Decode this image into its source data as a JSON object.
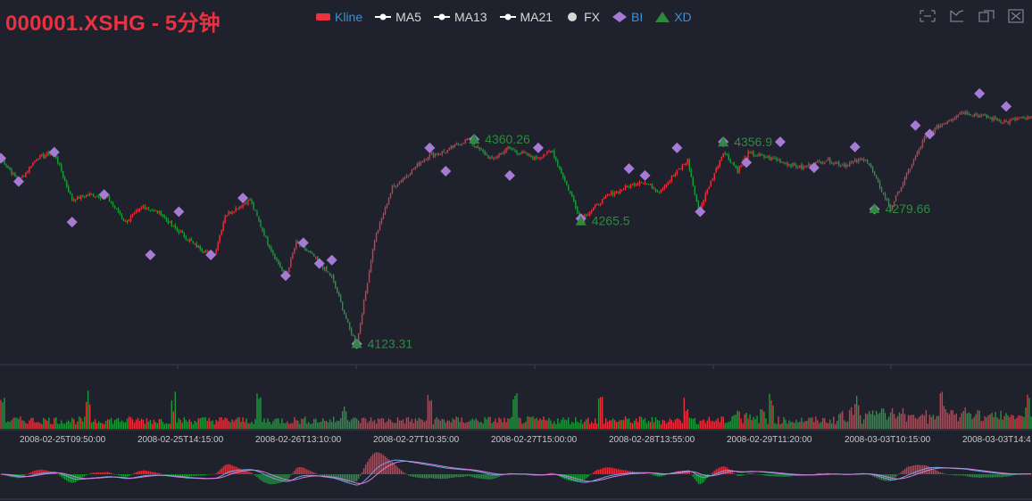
{
  "title": "000001.XSHG - 5分钟",
  "legend": [
    {
      "label": "Kline",
      "color": "#e9313f",
      "shape": "rect",
      "active": true
    },
    {
      "label": "MA5",
      "color": "#ffffff",
      "shape": "line-dot"
    },
    {
      "label": "MA13",
      "color": "#ffffff",
      "shape": "line-dot"
    },
    {
      "label": "MA21",
      "color": "#ffffff",
      "shape": "line-dot"
    },
    {
      "label": "FX",
      "color": "#d8d8d8",
      "shape": "circle"
    },
    {
      "label": "BI",
      "color": "#a67bd6",
      "shape": "diamond",
      "active": true
    },
    {
      "label": "XD",
      "color": "#2e8b3d",
      "shape": "triangle",
      "active": true
    }
  ],
  "toolbox": [
    {
      "name": "zoom-select-icon"
    },
    {
      "name": "zoom-reset-icon"
    },
    {
      "name": "data-view-icon"
    },
    {
      "name": "restore-icon"
    }
  ],
  "colors": {
    "up": "#e9313f",
    "down": "#1d9b3a",
    "bi": "#a67bd6",
    "xd": "#2e8b3d",
    "dif": "#6aa6e8",
    "dea": "#d97fd6",
    "background": "#1f212d"
  },
  "chart_data": {
    "type": "candlestick",
    "title": "000001.XSHG - 5分钟",
    "x_tick_labels": [
      "2008-02-25T09:50:00",
      "2008-02-25T14:15:00",
      "2008-02-26T13:10:00",
      "2008-02-27T10:35:00",
      "2008-02-27T15:00:00",
      "2008-02-28T13:55:00",
      "2008-02-29T11:20:00",
      "2008-03-03T10:15:00",
      "2008-03-03T14:4"
    ],
    "price_path": [
      [
        0,
        4338
      ],
      [
        10,
        4311
      ],
      [
        20,
        4338
      ],
      [
        30,
        4345
      ],
      [
        40,
        4290
      ],
      [
        50,
        4296
      ],
      [
        60,
        4292
      ],
      [
        70,
        4264
      ],
      [
        80,
        4282
      ],
      [
        90,
        4274
      ],
      [
        96,
        4260
      ],
      [
        110,
        4236
      ],
      [
        120,
        4226
      ],
      [
        126,
        4272
      ],
      [
        140,
        4290
      ],
      [
        150,
        4240
      ],
      [
        160,
        4200
      ],
      [
        166,
        4240
      ],
      [
        176,
        4224
      ],
      [
        186,
        4200
      ],
      [
        196,
        4140
      ],
      [
        200,
        4123
      ],
      [
        210,
        4244
      ],
      [
        220,
        4304
      ],
      [
        230,
        4322
      ],
      [
        240,
        4341
      ],
      [
        250,
        4346
      ],
      [
        262,
        4360
      ],
      [
        276,
        4336
      ],
      [
        285,
        4350
      ],
      [
        300,
        4338
      ],
      [
        310,
        4346
      ],
      [
        326,
        4268
      ],
      [
        342,
        4296
      ],
      [
        360,
        4312
      ],
      [
        370,
        4300
      ],
      [
        386,
        4336
      ],
      [
        392,
        4276
      ],
      [
        406,
        4346
      ],
      [
        414,
        4324
      ],
      [
        420,
        4344
      ],
      [
        436,
        4336
      ],
      [
        450,
        4327
      ],
      [
        464,
        4336
      ],
      [
        474,
        4330
      ],
      [
        486,
        4338
      ],
      [
        500,
        4280
      ],
      [
        520,
        4365
      ],
      [
        540,
        4392
      ],
      [
        566,
        4380
      ],
      [
        572,
        4384
      ]
    ],
    "bi_points": [
      {
        "x": 0,
        "y": 4338
      },
      {
        "x": 10,
        "y": 4311
      },
      {
        "x": 30,
        "y": 4345
      },
      {
        "x": 40,
        "y": 4264
      },
      {
        "x": 58,
        "y": 4296
      },
      {
        "x": 84,
        "y": 4226
      },
      {
        "x": 100,
        "y": 4276
      },
      {
        "x": 118,
        "y": 4226
      },
      {
        "x": 136,
        "y": 4292
      },
      {
        "x": 160,
        "y": 4202
      },
      {
        "x": 170,
        "y": 4240
      },
      {
        "x": 179,
        "y": 4216
      },
      {
        "x": 186,
        "y": 4220
      },
      {
        "x": 200,
        "y": 4123
      },
      {
        "x": 241,
        "y": 4350
      },
      {
        "x": 250,
        "y": 4323
      },
      {
        "x": 266,
        "y": 4360
      },
      {
        "x": 286,
        "y": 4318
      },
      {
        "x": 302,
        "y": 4350
      },
      {
        "x": 326,
        "y": 4268
      },
      {
        "x": 353,
        "y": 4326
      },
      {
        "x": 362,
        "y": 4318
      },
      {
        "x": 380,
        "y": 4350
      },
      {
        "x": 393,
        "y": 4276
      },
      {
        "x": 406,
        "y": 4357
      },
      {
        "x": 419,
        "y": 4333
      },
      {
        "x": 438,
        "y": 4357
      },
      {
        "x": 457,
        "y": 4327
      },
      {
        "x": 480,
        "y": 4351
      },
      {
        "x": 491,
        "y": 4279
      },
      {
        "x": 514,
        "y": 4376
      },
      {
        "x": 522,
        "y": 4366
      },
      {
        "x": 550,
        "y": 4413
      },
      {
        "x": 565,
        "y": 4398
      }
    ],
    "xd_points": [
      {
        "x": 200,
        "y": 4123.31,
        "label": "4123.31"
      },
      {
        "x": 266,
        "y": 4360.26,
        "label": "4360.26"
      },
      {
        "x": 326,
        "y": 4265.5,
        "label": "4265.5"
      },
      {
        "x": 406,
        "y": 4356.9,
        "label": "4356.9"
      },
      {
        "x": 491,
        "y": 4279.66,
        "label": "4279.66"
      }
    ],
    "ylim": [
      4100,
      4480
    ],
    "count": 580
  }
}
